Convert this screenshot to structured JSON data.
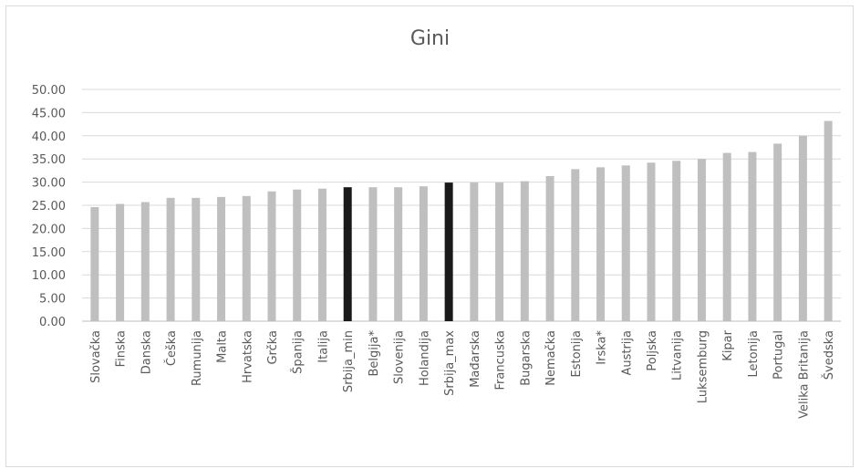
{
  "chart_data": {
    "type": "bar",
    "title": "Gini",
    "xlabel": "",
    "ylabel": "",
    "ylim": [
      0,
      50
    ],
    "yticks": [
      "0.00",
      "5.00",
      "10.00",
      "15.00",
      "20.00",
      "25.00",
      "30.00",
      "35.00",
      "40.00",
      "45.00",
      "50.00"
    ],
    "grid": true,
    "legend": "none",
    "colors": {
      "default": "#bfbfbf",
      "highlight": "#1a1a1a"
    },
    "highlighted": [
      "Srbija_min",
      "Srbija_max"
    ],
    "categories": [
      "Slovačka",
      "Finska",
      "Danska",
      "Češka",
      "Rumunija",
      "Malta",
      "Hrvatska",
      "Grčka",
      "Španija",
      "Italija",
      "Srbija_min",
      "Belgija*",
      "Slovenija",
      "Holandija",
      "Srbija_max",
      "Mađarska",
      "Francuska",
      "Bugarska",
      "Nemačka",
      "Estonija",
      "Irska*",
      "Austrija",
      "Poljska",
      "Litvanija",
      "Luksemburg",
      "Kipar",
      "Letonija",
      "Portugal",
      "Velika Britanija",
      "Švedska"
    ],
    "values": [
      24.6,
      25.3,
      25.7,
      26.6,
      26.6,
      26.8,
      27.0,
      28.0,
      28.4,
      28.6,
      28.9,
      28.9,
      28.9,
      29.1,
      29.9,
      29.9,
      29.9,
      30.2,
      31.3,
      32.8,
      33.2,
      33.6,
      34.2,
      34.6,
      35.0,
      36.3,
      36.5,
      38.3,
      40.0,
      43.2
    ]
  }
}
